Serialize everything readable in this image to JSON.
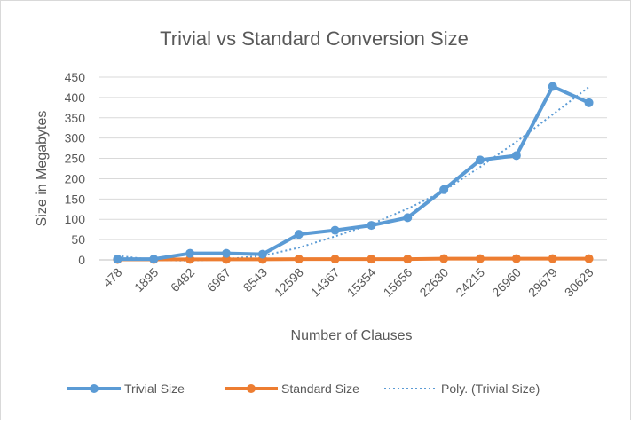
{
  "chart_data": {
    "type": "line",
    "title": "Trivial vs Standard Conversion Size",
    "xlabel": "Number of Clauses",
    "ylabel": "Size in Megabytes",
    "categories": [
      "478",
      "1895",
      "6482",
      "6967",
      "8543",
      "12598",
      "14367",
      "15354",
      "15656",
      "22630",
      "24215",
      "26960",
      "29679",
      "30628"
    ],
    "ylim": [
      0,
      450
    ],
    "yticks": [
      "0",
      "50",
      "100",
      "150",
      "200",
      "250",
      "300",
      "350",
      "400",
      "450"
    ],
    "grid": true,
    "legend_position": "bottom",
    "series": [
      {
        "name": "Trivial Size",
        "color": "#5b9bd5",
        "style": "line-markers",
        "values": [
          2,
          2,
          16,
          16,
          14,
          63,
          73,
          85,
          104,
          173,
          246,
          257,
          427,
          387
        ]
      },
      {
        "name": "Standard Size",
        "color": "#ed7d31",
        "style": "line-markers",
        "values": [
          1,
          1,
          1.5,
          1.5,
          1.5,
          2,
          2,
          2,
          2,
          3,
          3,
          3,
          3,
          3
        ]
      },
      {
        "name": "Poly.  (Trivial Size)",
        "color": "#5b9bd5",
        "style": "dotted",
        "values": [
          10,
          0,
          -2,
          2,
          10,
          30,
          58,
          88,
          126,
          170,
          229,
          291,
          358,
          426
        ]
      }
    ]
  }
}
